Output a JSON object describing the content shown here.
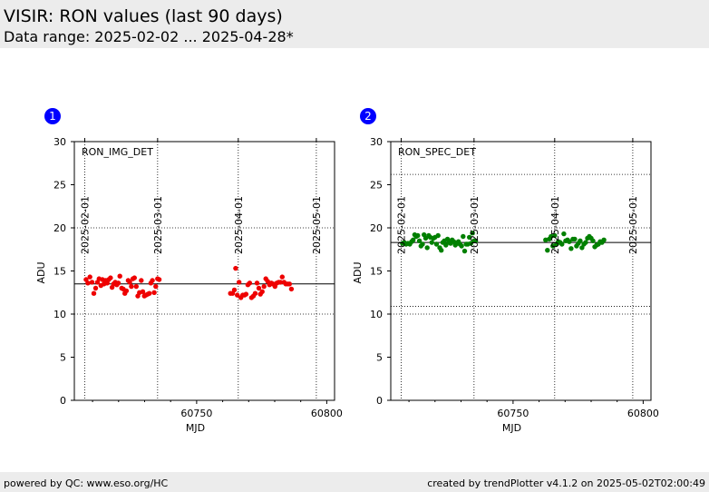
{
  "header": {
    "title": "VISIR: RON values (last 90 days)",
    "subtitle": "Data range: 2025-02-02 ... 2025-04-28*"
  },
  "footer": {
    "left": "powered by QC: www.eso.org/HC",
    "right": "created by trendPlotter v4.1.2 on 2025-05-02T02:00:49"
  },
  "chart_data": [
    {
      "type": "scatter",
      "badge": "1",
      "label": "RON_IMG_DET",
      "xlabel": "MJD",
      "ylabel": "ADU",
      "xlim": [
        60703,
        60803
      ],
      "ylim": [
        0,
        30
      ],
      "xticks": [
        60750,
        60800
      ],
      "yticks": [
        0,
        5,
        10,
        15,
        20,
        25,
        30
      ],
      "top_axis": {
        "ticks": [
          {
            "mjd": 60707,
            "label": "2025-02-01"
          },
          {
            "mjd": 60735,
            "label": "2025-03-01"
          },
          {
            "mjd": 60766,
            "label": "2025-04-01"
          },
          {
            "mjd": 60796,
            "label": "2025-05-01"
          }
        ]
      },
      "hlines": [
        13.5
      ],
      "color": "#ee0000",
      "points": [
        [
          60707.5,
          14.0
        ],
        [
          60708.2,
          13.6
        ],
        [
          60709.0,
          14.3
        ],
        [
          60709.8,
          13.7
        ],
        [
          60710.5,
          12.4
        ],
        [
          60711.2,
          13.0
        ],
        [
          60711.9,
          13.7
        ],
        [
          60712.5,
          14.1
        ],
        [
          60713.2,
          13.3
        ],
        [
          60713.8,
          14.0
        ],
        [
          60714.4,
          13.5
        ],
        [
          60715.0,
          13.9
        ],
        [
          60715.6,
          13.6
        ],
        [
          60716.2,
          14.0
        ],
        [
          60716.9,
          14.2
        ],
        [
          60717.5,
          13.1
        ],
        [
          60718.1,
          13.5
        ],
        [
          60718.7,
          13.7
        ],
        [
          60719.3,
          13.4
        ],
        [
          60719.9,
          13.6
        ],
        [
          60720.5,
          14.4
        ],
        [
          60721.2,
          13.0
        ],
        [
          60721.8,
          12.9
        ],
        [
          60722.4,
          12.4
        ],
        [
          60723.0,
          12.7
        ],
        [
          60723.7,
          13.9
        ],
        [
          60724.3,
          13.7
        ],
        [
          60724.9,
          13.2
        ],
        [
          60725.5,
          14.1
        ],
        [
          60726.1,
          14.2
        ],
        [
          60726.8,
          13.2
        ],
        [
          60727.4,
          12.1
        ],
        [
          60728.0,
          12.5
        ],
        [
          60728.7,
          13.9
        ],
        [
          60729.3,
          12.6
        ],
        [
          60729.9,
          12.1
        ],
        [
          60730.5,
          12.2
        ],
        [
          60731.2,
          12.3
        ],
        [
          60731.8,
          12.4
        ],
        [
          60732.4,
          13.6
        ],
        [
          60733.0,
          13.9
        ],
        [
          60733.7,
          12.5
        ],
        [
          60734.3,
          13.2
        ],
        [
          60735.0,
          14.1
        ],
        [
          60735.6,
          14.0
        ],
        [
          60763.0,
          12.4
        ],
        [
          60763.8,
          12.4
        ],
        [
          60764.5,
          12.8
        ],
        [
          60765.0,
          15.3
        ],
        [
          60765.6,
          12.2
        ],
        [
          60766.3,
          13.7
        ],
        [
          60767.0,
          11.9
        ],
        [
          60767.7,
          12.2
        ],
        [
          60768.4,
          12.2
        ],
        [
          60769.0,
          12.3
        ],
        [
          60769.7,
          13.4
        ],
        [
          60770.4,
          13.6
        ],
        [
          60771.1,
          11.9
        ],
        [
          60771.8,
          12.1
        ],
        [
          60772.5,
          12.4
        ],
        [
          60773.2,
          13.6
        ],
        [
          60773.9,
          13.0
        ],
        [
          60774.5,
          12.3
        ],
        [
          60775.2,
          12.6
        ],
        [
          60775.9,
          13.2
        ],
        [
          60776.6,
          14.1
        ],
        [
          60777.3,
          13.8
        ],
        [
          60778.0,
          13.4
        ],
        [
          60778.7,
          13.6
        ],
        [
          60779.4,
          13.5
        ],
        [
          60780.1,
          13.2
        ],
        [
          60780.8,
          13.6
        ],
        [
          60781.5,
          13.7
        ],
        [
          60782.2,
          13.7
        ],
        [
          60782.9,
          14.3
        ],
        [
          60783.6,
          13.7
        ],
        [
          60784.3,
          13.5
        ],
        [
          60785.0,
          13.5
        ],
        [
          60785.7,
          13.5
        ],
        [
          60786.4,
          12.9
        ]
      ]
    },
    {
      "type": "scatter",
      "badge": "2",
      "label": "RON_SPEC_DET",
      "xlabel": "MJD",
      "ylabel": "ADU",
      "xlim": [
        60703,
        60803
      ],
      "ylim": [
        0,
        30
      ],
      "xticks": [
        60750,
        60800
      ],
      "yticks": [
        0,
        5,
        10,
        15,
        20,
        25,
        30
      ],
      "top_axis": {
        "ticks": [
          {
            "mjd": 60707,
            "label": "2025-02-01"
          },
          {
            "mjd": 60735,
            "label": "2025-03-01"
          },
          {
            "mjd": 60766,
            "label": "2025-04-01"
          },
          {
            "mjd": 60796,
            "label": "2025-05-01"
          }
        ]
      },
      "hlines": [
        18.3,
        26.2,
        10.9
      ],
      "color": "#008000",
      "points": [
        [
          60707.5,
          18.2
        ],
        [
          60708.2,
          18.3
        ],
        [
          60708.9,
          18.1
        ],
        [
          60709.6,
          18.2
        ],
        [
          60710.3,
          18.1
        ],
        [
          60711.0,
          18.4
        ],
        [
          60711.6,
          18.6
        ],
        [
          60712.2,
          19.2
        ],
        [
          60712.8,
          19.0
        ],
        [
          60713.4,
          19.1
        ],
        [
          60714.0,
          18.5
        ],
        [
          60714.6,
          17.9
        ],
        [
          60715.2,
          18.1
        ],
        [
          60715.8,
          19.2
        ],
        [
          60716.4,
          18.8
        ],
        [
          60717.0,
          17.7
        ],
        [
          60717.6,
          19.1
        ],
        [
          60718.2,
          18.9
        ],
        [
          60718.8,
          18.3
        ],
        [
          60719.4,
          18.8
        ],
        [
          60720.0,
          18.9
        ],
        [
          60720.6,
          18.1
        ],
        [
          60721.2,
          19.1
        ],
        [
          60721.8,
          17.7
        ],
        [
          60722.4,
          17.4
        ],
        [
          60723.0,
          18.3
        ],
        [
          60723.6,
          18.5
        ],
        [
          60724.2,
          18.0
        ],
        [
          60724.8,
          18.7
        ],
        [
          60725.4,
          18.3
        ],
        [
          60726.0,
          18.2
        ],
        [
          60726.6,
          18.6
        ],
        [
          60727.2,
          18.4
        ],
        [
          60727.8,
          18.0
        ],
        [
          60728.4,
          18.2
        ],
        [
          60729.0,
          18.4
        ],
        [
          60729.6,
          18.1
        ],
        [
          60730.2,
          17.9
        ],
        [
          60730.8,
          19.0
        ],
        [
          60731.4,
          17.3
        ],
        [
          60732.0,
          18.1
        ],
        [
          60732.6,
          18.1
        ],
        [
          60733.2,
          18.9
        ],
        [
          60733.8,
          18.2
        ],
        [
          60734.4,
          19.4
        ],
        [
          60735.0,
          18.5
        ],
        [
          60735.6,
          18.5
        ],
        [
          60762.5,
          18.6
        ],
        [
          60763.2,
          17.4
        ],
        [
          60763.9,
          18.7
        ],
        [
          60764.6,
          19.0
        ],
        [
          60765.3,
          17.9
        ],
        [
          60766.0,
          19.1
        ],
        [
          60766.7,
          18.1
        ],
        [
          60767.4,
          18.4
        ],
        [
          60768.1,
          18.3
        ],
        [
          60768.8,
          18.1
        ],
        [
          60769.5,
          19.3
        ],
        [
          60770.2,
          18.5
        ],
        [
          60770.9,
          18.6
        ],
        [
          60771.6,
          18.4
        ],
        [
          60772.3,
          17.6
        ],
        [
          60773.0,
          18.7
        ],
        [
          60773.7,
          18.7
        ],
        [
          60774.4,
          17.9
        ],
        [
          60775.1,
          18.2
        ],
        [
          60775.8,
          18.5
        ],
        [
          60776.5,
          17.7
        ],
        [
          60777.2,
          18.1
        ],
        [
          60777.9,
          18.3
        ],
        [
          60778.6,
          18.8
        ],
        [
          60779.3,
          19.0
        ],
        [
          60780.0,
          18.8
        ],
        [
          60780.7,
          18.5
        ],
        [
          60781.4,
          17.8
        ],
        [
          60782.1,
          18.0
        ],
        [
          60782.8,
          18.1
        ],
        [
          60783.5,
          18.4
        ],
        [
          60784.2,
          18.3
        ],
        [
          60784.9,
          18.6
        ]
      ]
    }
  ]
}
